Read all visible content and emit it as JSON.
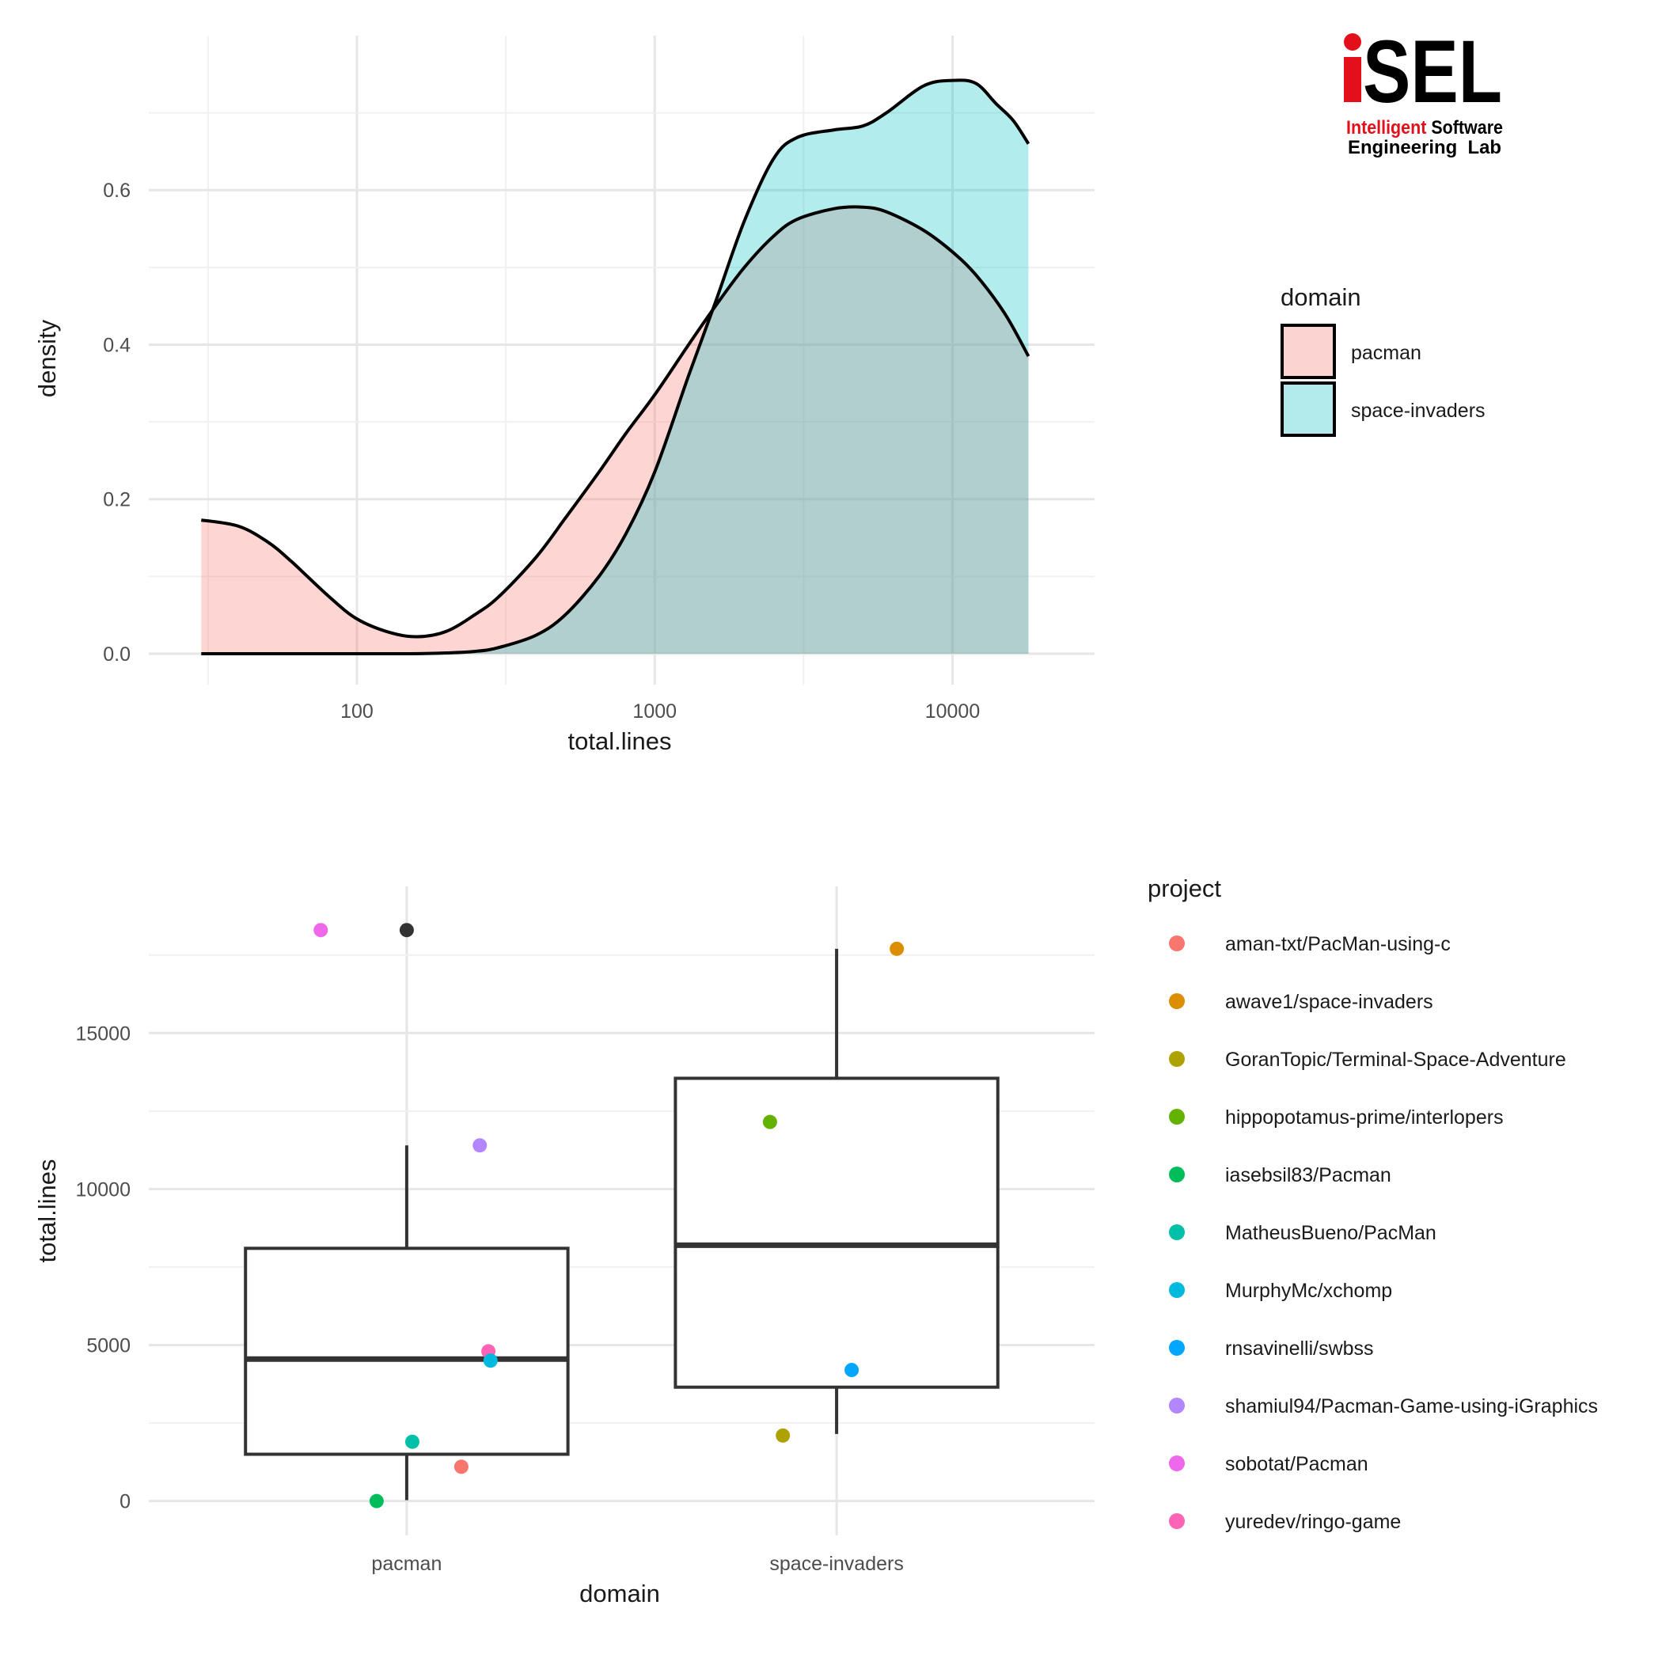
{
  "logo": {
    "letters": "SEL",
    "line1_red": "Intelligent",
    "line1_black": "Software",
    "line2": "Engineering  Lab",
    "red": "#e3101c"
  },
  "chart_data": [
    {
      "type": "area",
      "subtype": "density",
      "xlabel": "total.lines",
      "ylabel": "density",
      "xscale": "log10",
      "xlim": [
        20,
        30000
      ],
      "ylim": [
        -0.04,
        0.8
      ],
      "x_ticks": [
        100,
        1000,
        10000
      ],
      "x_tick_labels": [
        "100",
        "1000",
        "10000"
      ],
      "y_ticks": [
        0.0,
        0.2,
        0.4,
        0.6
      ],
      "y_tick_labels": [
        "0.0",
        "0.2",
        "0.4",
        "0.6"
      ],
      "grid": true,
      "legend": {
        "title": "domain",
        "position": "right",
        "entries": [
          "pacman",
          "space-invaders"
        ]
      },
      "series": [
        {
          "name": "pacman",
          "color": "#F8766D",
          "fill": "#fbd3d1",
          "x": [
            30,
            40,
            50,
            60,
            80,
            100,
            130,
            160,
            200,
            250,
            300,
            400,
            500,
            650,
            800,
            1000,
            1300,
            1600,
            2000,
            2500,
            3000,
            4000,
            5000,
            6000,
            8000,
            10000,
            12000,
            15000,
            18000
          ],
          "y": [
            0.173,
            0.165,
            0.145,
            0.12,
            0.075,
            0.045,
            0.027,
            0.022,
            0.029,
            0.051,
            0.074,
            0.125,
            0.175,
            0.235,
            0.285,
            0.335,
            0.4,
            0.45,
            0.5,
            0.54,
            0.562,
            0.576,
            0.578,
            0.572,
            0.548,
            0.52,
            0.49,
            0.44,
            0.385
          ]
        },
        {
          "name": "space-invaders",
          "color": "#00BFC4",
          "fill": "#b3ebec",
          "x": [
            30,
            60,
            100,
            150,
            200,
            250,
            300,
            400,
            500,
            650,
            800,
            1000,
            1300,
            1600,
            2000,
            2500,
            3000,
            4000,
            5000,
            6000,
            8000,
            10000,
            12000,
            14000,
            16000,
            18000
          ],
          "y": [
            0.0,
            0.0,
            0.0,
            0.0,
            0.001,
            0.003,
            0.008,
            0.024,
            0.05,
            0.1,
            0.155,
            0.235,
            0.36,
            0.455,
            0.56,
            0.64,
            0.668,
            0.678,
            0.683,
            0.7,
            0.735,
            0.742,
            0.738,
            0.712,
            0.69,
            0.66
          ]
        }
      ]
    },
    {
      "type": "box",
      "xlabel": "domain",
      "ylabel": "total.lines",
      "categories": [
        "pacman",
        "space-invaders"
      ],
      "ylim": [
        -1100,
        19700
      ],
      "y_ticks": [
        0,
        5000,
        10000,
        15000
      ],
      "y_tick_labels": [
        "0",
        "5000",
        "10000",
        "15000"
      ],
      "grid": true,
      "boxes": [
        {
          "category": "pacman",
          "min": 30,
          "q1": 1500,
          "median": 4550,
          "q3": 8100,
          "max": 11400,
          "outliers": [
            18300
          ]
        },
        {
          "category": "space-invaders",
          "min": 2150,
          "q1": 3650,
          "median": 8200,
          "q3": 13550,
          "max": 17700,
          "outliers": []
        }
      ],
      "legend": {
        "title": "project",
        "position": "right",
        "entries": [
          {
            "name": "aman-txt/PacMan-using-c",
            "color": "#F8766D"
          },
          {
            "name": "awave1/space-invaders",
            "color": "#DB8E00"
          },
          {
            "name": "GoranTopic/Terminal-Space-Adventure",
            "color": "#AEA200"
          },
          {
            "name": "hippopotamus-prime/interlopers",
            "color": "#64B200"
          },
          {
            "name": "iasebsil83/Pacman",
            "color": "#00BD5C"
          },
          {
            "name": "MatheusBueno/PacMan",
            "color": "#00C1A7"
          },
          {
            "name": "MurphyMc/xchomp",
            "color": "#00BADE"
          },
          {
            "name": "rnsavinelli/swbss",
            "color": "#00A6FF"
          },
          {
            "name": "shamiul94/Pacman-Game-using-iGraphics",
            "color": "#B385FF"
          },
          {
            "name": "sobotat/Pacman",
            "color": "#EF67EB"
          },
          {
            "name": "yuredev/ringo-game",
            "color": "#FF63B6"
          }
        ]
      },
      "points": [
        {
          "project": "sobotat/Pacman",
          "category": "pacman",
          "jitter": -0.2,
          "value": 18300
        },
        {
          "project": "shamiul94/Pacman-Game-using-iGraphics",
          "category": "pacman",
          "jitter": 0.17,
          "value": 11400
        },
        {
          "project": "yuredev/ringo-game",
          "category": "pacman",
          "jitter": 0.19,
          "value": 4800
        },
        {
          "project": "MurphyMc/xchomp",
          "category": "pacman",
          "jitter": 0.195,
          "value": 4500
        },
        {
          "project": "MatheusBueno/PacMan",
          "category": "pacman",
          "jitter": 0.013,
          "value": 1900
        },
        {
          "project": "aman-txt/PacMan-using-c",
          "category": "pacman",
          "jitter": 0.127,
          "value": 1100
        },
        {
          "project": "iasebsil83/Pacman",
          "category": "pacman",
          "jitter": -0.07,
          "value": 0
        },
        {
          "project": "awave1/space-invaders",
          "category": "space-invaders",
          "jitter": 0.14,
          "value": 17700
        },
        {
          "project": "hippopotamus-prime/interlopers",
          "category": "space-invaders",
          "jitter": -0.155,
          "value": 12150
        },
        {
          "project": "rnsavinelli/swbss",
          "category": "space-invaders",
          "jitter": 0.035,
          "value": 4200
        },
        {
          "project": "GoranTopic/Terminal-Space-Adventure",
          "category": "space-invaders",
          "jitter": -0.125,
          "value": 2100
        }
      ]
    }
  ]
}
